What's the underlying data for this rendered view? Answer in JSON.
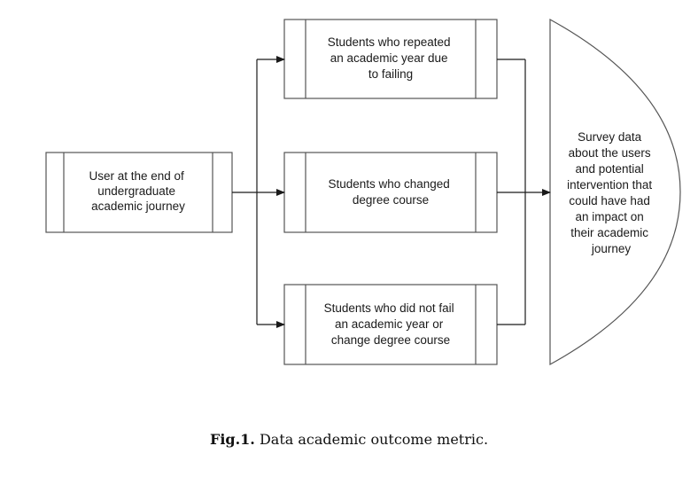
{
  "diagram": {
    "source": {
      "lines": [
        "User at the end of",
        "undergraduate",
        "academic journey"
      ]
    },
    "branches": [
      {
        "lines": [
          "Students who repeated",
          "an academic year due",
          "to failing"
        ]
      },
      {
        "lines": [
          "Students who changed",
          "degree course"
        ]
      },
      {
        "lines": [
          "Students who did not fail",
          "an academic year or",
          "change degree course"
        ]
      }
    ],
    "output": {
      "lines": [
        "Survey data",
        "about the users",
        "and potential",
        "intervention that",
        "could have had",
        "an impact on",
        "their academic",
        "journey"
      ]
    }
  },
  "caption": {
    "label": "Fig.1.",
    "text": " Data academic outcome metric."
  }
}
